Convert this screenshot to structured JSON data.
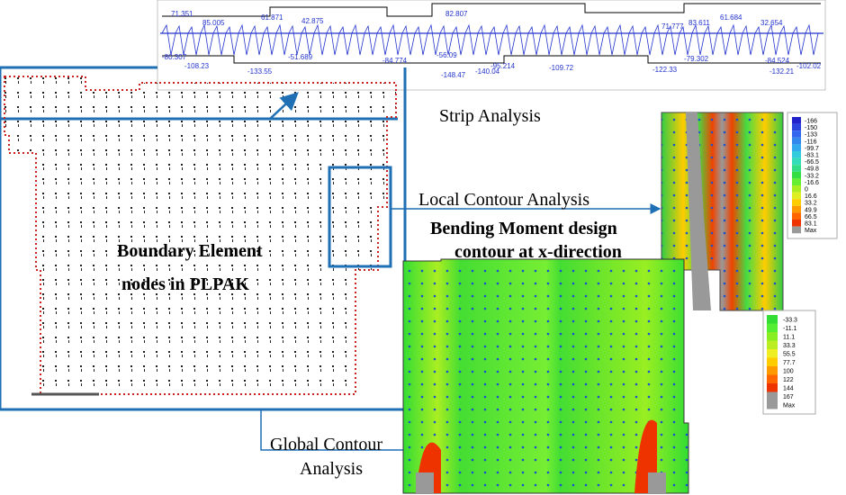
{
  "labels": {
    "strip": "Strip Analysis",
    "local": "Local Contour Analysis",
    "bending_1": "Bending Moment design",
    "bending_2": "contour at x-direction",
    "boundary_1": "Boundary Element",
    "boundary_2": "nodes in PLPAK",
    "global_1": "Global Contour",
    "global_2": "Analysis"
  },
  "strip_values": [
    "71.351",
    "85.005",
    "61.871",
    "42.875",
    "82.807",
    "61.684",
    "32.654",
    "83.611",
    "71.777",
    "-80.307",
    "-84.524",
    "-102.02",
    "-148.47",
    "-140.04",
    "-133.55",
    "-132.21",
    "-109.72",
    "-122.33",
    "-95.214",
    "-56.09",
    "-51.689",
    "-84.774",
    "-79.302",
    "-108.23"
  ],
  "legend_local": [
    "-166",
    "-150",
    "-133",
    "-116",
    "-99.7",
    "-83.1",
    "-66.5",
    "-49.8",
    "-33.2",
    "-16.6",
    "0",
    "16.6",
    "33.2",
    "49.9",
    "66.5",
    "83.1",
    "Max"
  ],
  "legend_global": [
    "-33.3",
    "-11.1",
    "11.1",
    "33.3",
    "55.5",
    "77.7",
    "100",
    "122",
    "144",
    "167",
    "Max"
  ]
}
